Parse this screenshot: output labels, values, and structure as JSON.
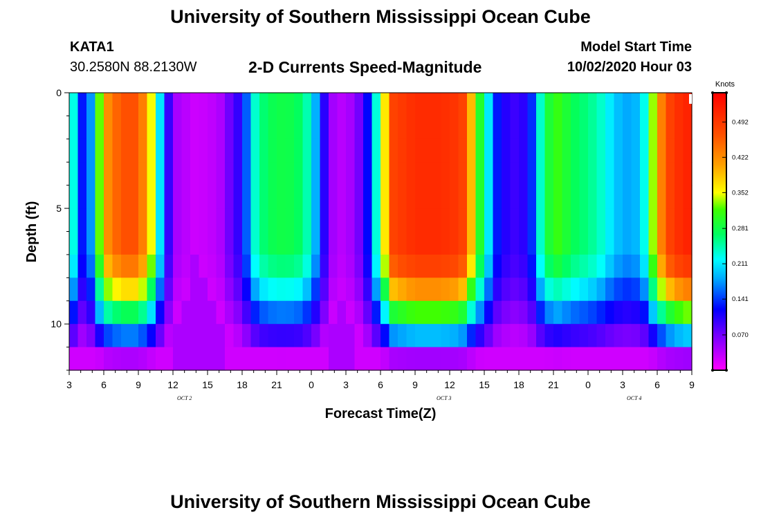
{
  "header": {
    "title_top": "University of Southern Mississippi Ocean Cube",
    "title_bottom": "University of Southern Mississippi Ocean Cube",
    "station": "KATA1",
    "coords": "30.2580N 88.2130W",
    "plot_title": "2-D Currents Speed-Magnitude",
    "model_label": "Model Start Time",
    "model_time": "10/02/2020 Hour 03"
  },
  "chart_data": {
    "type": "heatmap",
    "title": "2-D Currents Speed-Magnitude",
    "xlabel": "Forecast Time(Z)",
    "ylabel": "Depth (ft)",
    "units": "Knots",
    "x_start_hour": 3,
    "x_end_hour": 57,
    "x_ticks": [
      {
        "hour": 3,
        "label": "3"
      },
      {
        "hour": 6,
        "label": "6"
      },
      {
        "hour": 9,
        "label": "9"
      },
      {
        "hour": 12,
        "label": "12"
      },
      {
        "hour": 15,
        "label": "15"
      },
      {
        "hour": 18,
        "label": "18"
      },
      {
        "hour": 21,
        "label": "21"
      },
      {
        "hour": 24,
        "label": "0"
      },
      {
        "hour": 27,
        "label": "3"
      },
      {
        "hour": 30,
        "label": "6"
      },
      {
        "hour": 33,
        "label": "9"
      },
      {
        "hour": 36,
        "label": "12"
      },
      {
        "hour": 39,
        "label": "15"
      },
      {
        "hour": 42,
        "label": "18"
      },
      {
        "hour": 45,
        "label": "21"
      },
      {
        "hour": 48,
        "label": "0"
      },
      {
        "hour": 51,
        "label": "3"
      },
      {
        "hour": 54,
        "label": "6"
      },
      {
        "hour": 57,
        "label": "9"
      }
    ],
    "date_labels": [
      {
        "hour": 13.0,
        "label": "OCT 2"
      },
      {
        "hour": 35.5,
        "label": "OCT 3"
      },
      {
        "hour": 52.0,
        "label": "OCT 4"
      }
    ],
    "y_range": [
      0,
      12
    ],
    "y_ticks": [
      0,
      5,
      10
    ],
    "depth_levels": 12,
    "colorbar": {
      "min": 0.0,
      "max": 0.55,
      "ticks": [
        "0.070",
        "0.141",
        "0.211",
        "0.281",
        "0.352",
        "0.422",
        "0.492"
      ]
    },
    "speed_profile": {
      "description": "surface speed (knots) vs forecast hour; deeper layers decay toward zero at bottom",
      "hours": [
        3,
        4,
        5,
        6,
        7.5,
        9,
        10,
        11,
        12,
        14,
        16,
        18,
        19,
        20,
        21,
        22,
        23,
        24,
        25,
        26,
        27,
        28,
        29,
        30,
        31,
        33,
        35,
        37,
        38,
        39,
        40,
        41,
        42,
        43,
        44,
        45,
        46,
        47,
        48,
        49,
        50,
        51,
        52,
        53,
        54,
        55,
        56,
        57
      ],
      "values": [
        0.25,
        0.11,
        0.16,
        0.36,
        0.42,
        0.42,
        0.33,
        0.16,
        0.04,
        0.02,
        0.03,
        0.1,
        0.2,
        0.24,
        0.25,
        0.25,
        0.24,
        0.2,
        0.1,
        0.03,
        0.03,
        0.05,
        0.12,
        0.25,
        0.44,
        0.48,
        0.48,
        0.46,
        0.33,
        0.22,
        0.12,
        0.09,
        0.08,
        0.11,
        0.22,
        0.28,
        0.26,
        0.24,
        0.23,
        0.21,
        0.18,
        0.16,
        0.16,
        0.2,
        0.35,
        0.44,
        0.48,
        0.5
      ]
    }
  }
}
